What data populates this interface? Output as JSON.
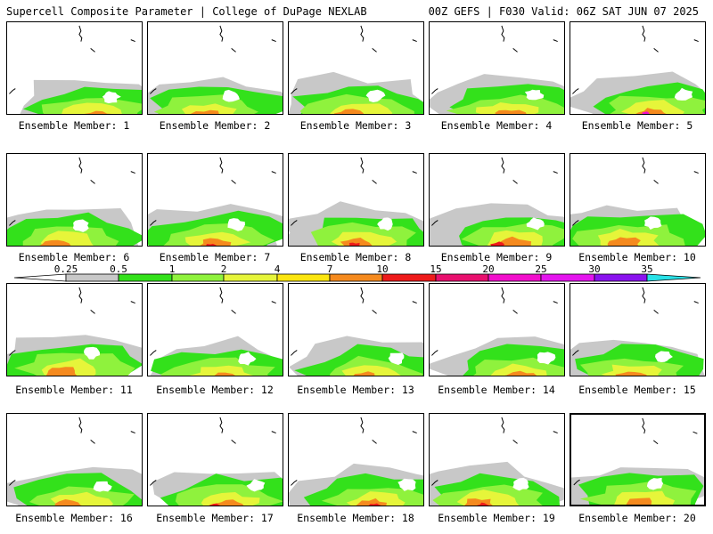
{
  "header": {
    "left": "Supercell Composite Parameter | College of DuPage NEXLAB",
    "right": "00Z GEFS | F030 Valid: 06Z SAT JUN 07 2025"
  },
  "member_label_prefix": "Ensemble Member: ",
  "members": [
    {
      "id": "1"
    },
    {
      "id": "2"
    },
    {
      "id": "3"
    },
    {
      "id": "4"
    },
    {
      "id": "5"
    },
    {
      "id": "6"
    },
    {
      "id": "7"
    },
    {
      "id": "8"
    },
    {
      "id": "9"
    },
    {
      "id": "10"
    },
    {
      "id": "11"
    },
    {
      "id": "12"
    },
    {
      "id": "13"
    },
    {
      "id": "14"
    },
    {
      "id": "15"
    },
    {
      "id": "16"
    },
    {
      "id": "17"
    },
    {
      "id": "18"
    },
    {
      "id": "19"
    },
    {
      "id": "20",
      "selected": true
    }
  ],
  "colorbar": {
    "labels": [
      "0.25",
      "0.5",
      "1",
      "2",
      "4",
      "7",
      "10",
      "15",
      "20",
      "25",
      "30",
      "35"
    ],
    "colors": [
      "#ffffff",
      "#c8c8c8",
      "#33e11b",
      "#8ff23d",
      "#e6f53a",
      "#fbe50f",
      "#f58a1e",
      "#ee1b1b",
      "#e8106e",
      "#f20fcc",
      "#e415ee",
      "#8a13ee",
      "#b062dc",
      "#28e1e7"
    ]
  }
}
